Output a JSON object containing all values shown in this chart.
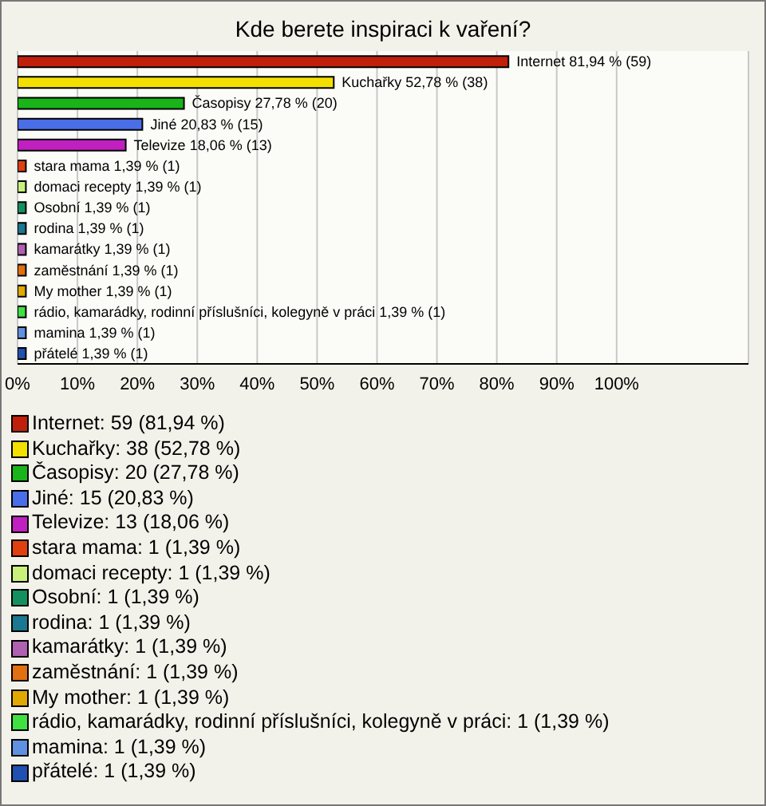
{
  "chart_data": {
    "type": "bar",
    "orientation": "horizontal",
    "title": "Kde berete inspiraci k vaření?",
    "categories": [
      null,
      null,
      null,
      null,
      null,
      null,
      null,
      null,
      null,
      null,
      null,
      null,
      null,
      null,
      null
    ],
    "values": [
      81.94,
      52.78,
      27.78,
      20.83,
      18.06,
      1.39,
      1.39,
      1.39,
      1.39,
      1.39,
      1.39,
      1.39,
      1.39,
      1.39,
      1.39
    ],
    "value_labels": [
      "Internet 81,94 % (59)",
      "Kuchařky 52,78 % (38)",
      "Časopisy 27,78 % (20)",
      "Jiné 20,83 % (15)",
      "Televize 18,06 % (13)",
      "stara mama 1,39 % (1)",
      "domaci recepty 1,39 % (1)",
      "Osobní 1,39 % (1)",
      "rodina 1,39 % (1)",
      "kamarátky 1,39 % (1)",
      "zaměstnání 1,39 % (1)",
      "My mother 1,39 % (1)",
      "rádio, kamarádky, rodinní příslušníci, kolegyně v práci 1,39 % (1)",
      "mamina 1,39 % (1)",
      "přátelé 1,39 % (1)"
    ],
    "colors": [
      "#c0200a",
      "#f4e000",
      "#19b419",
      "#4a6ee8",
      "#c020c0",
      "#e04010",
      "#c8f07a",
      "#149060",
      "#1a7890",
      "#b060b0",
      "#e07010",
      "#e0a800",
      "#40e040",
      "#6090e0",
      "#2050b0"
    ],
    "xlim": [
      0,
      122
    ],
    "xticks": [
      {
        "value": 0,
        "label": "0%"
      },
      {
        "value": 10,
        "label": "10%"
      },
      {
        "value": 20,
        "label": "20%"
      },
      {
        "value": 30,
        "label": "30%"
      },
      {
        "value": 40,
        "label": "40%"
      },
      {
        "value": 50,
        "label": "50%"
      },
      {
        "value": 60,
        "label": "60%"
      },
      {
        "value": 70,
        "label": "70%"
      },
      {
        "value": 80,
        "label": "80%"
      },
      {
        "value": 90,
        "label": "90%"
      },
      {
        "value": 100,
        "label": "100%"
      }
    ],
    "grid": "x",
    "tick_labels": "x",
    "annotations": [
      "Internet: 59 (81,94 %)",
      "Kuchařky: 38 (52,78 %)",
      "Časopisy: 20 (27,78 %)",
      "Jiné: 15 (20,83 %)",
      "Televize: 13 (18,06 %)",
      "stara mama: 1 (1,39 %)",
      "domaci recepty: 1 (1,39 %)",
      "Osobní: 1 (1,39 %)",
      "rodina: 1 (1,39 %)",
      "kamarátky: 1 (1,39 %)",
      "zaměstnání: 1 (1,39 %)",
      "My mother: 1 (1,39 %)",
      "rádio, kamarádky, rodinní příslušníci, kolegyně v práci: 1 (1,39 %)",
      "mamina: 1 (1,39 %)",
      "přátelé: 1 (1,39 %)"
    ]
  }
}
